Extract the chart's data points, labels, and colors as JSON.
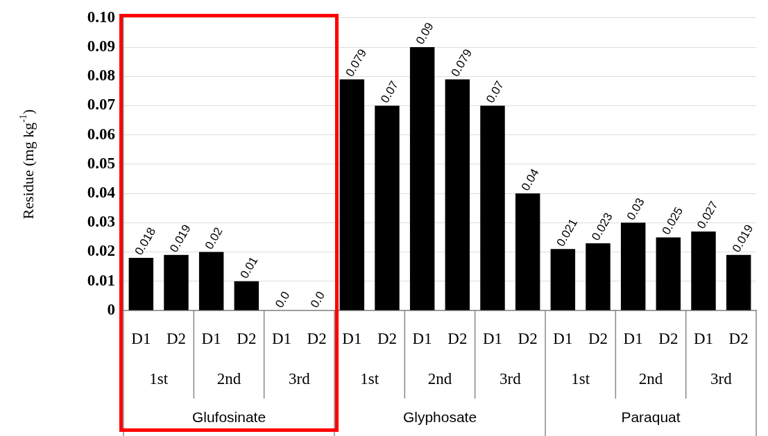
{
  "chart_data": {
    "type": "bar",
    "ylabel": "Residue (mg kg$^{-1}$)",
    "categories": [
      "D1",
      "D2",
      "D1",
      "D2",
      "D1",
      "D2",
      "D1",
      "D2",
      "D1",
      "D2",
      "D1",
      "D2",
      "D1",
      "D2",
      "D1",
      "D2",
      "D1",
      "D2"
    ],
    "annotations": [
      "1st",
      "2nd",
      "3rd",
      "1st",
      "2nd",
      "3rd",
      "1st",
      "2nd",
      "3rd",
      "Glufosinate",
      "Glyphosate",
      "Paraquat"
    ],
    "values": [
      0.018,
      0.019,
      0.02,
      0.01,
      0,
      0,
      0.079,
      0.07,
      0.09,
      0.079,
      0.07,
      0.04,
      0.021,
      0.023,
      0.03,
      0.025,
      0.027,
      0.019
    ],
    "value_labels": [
      "0.018",
      "0.019",
      "0.02",
      "0.01",
      "0.0",
      "0.0",
      "0.079",
      "0.07",
      "0.09",
      "0.079",
      "0.07",
      "0.04",
      "0.021",
      "0.023",
      "0.03",
      "0.025",
      "0.027",
      "0.019"
    ],
    "color": "#000000",
    "ylim": [
      0,
      0.1
    ],
    "yticks": [
      0,
      0.01,
      0.02,
      0.03,
      0.04,
      0.05,
      0.06,
      0.07,
      0.08,
      0.09,
      {
        "value": 0.1,
        "label": "0.10"
      }
    ],
    "grid": "y",
    "legend": false
  }
}
